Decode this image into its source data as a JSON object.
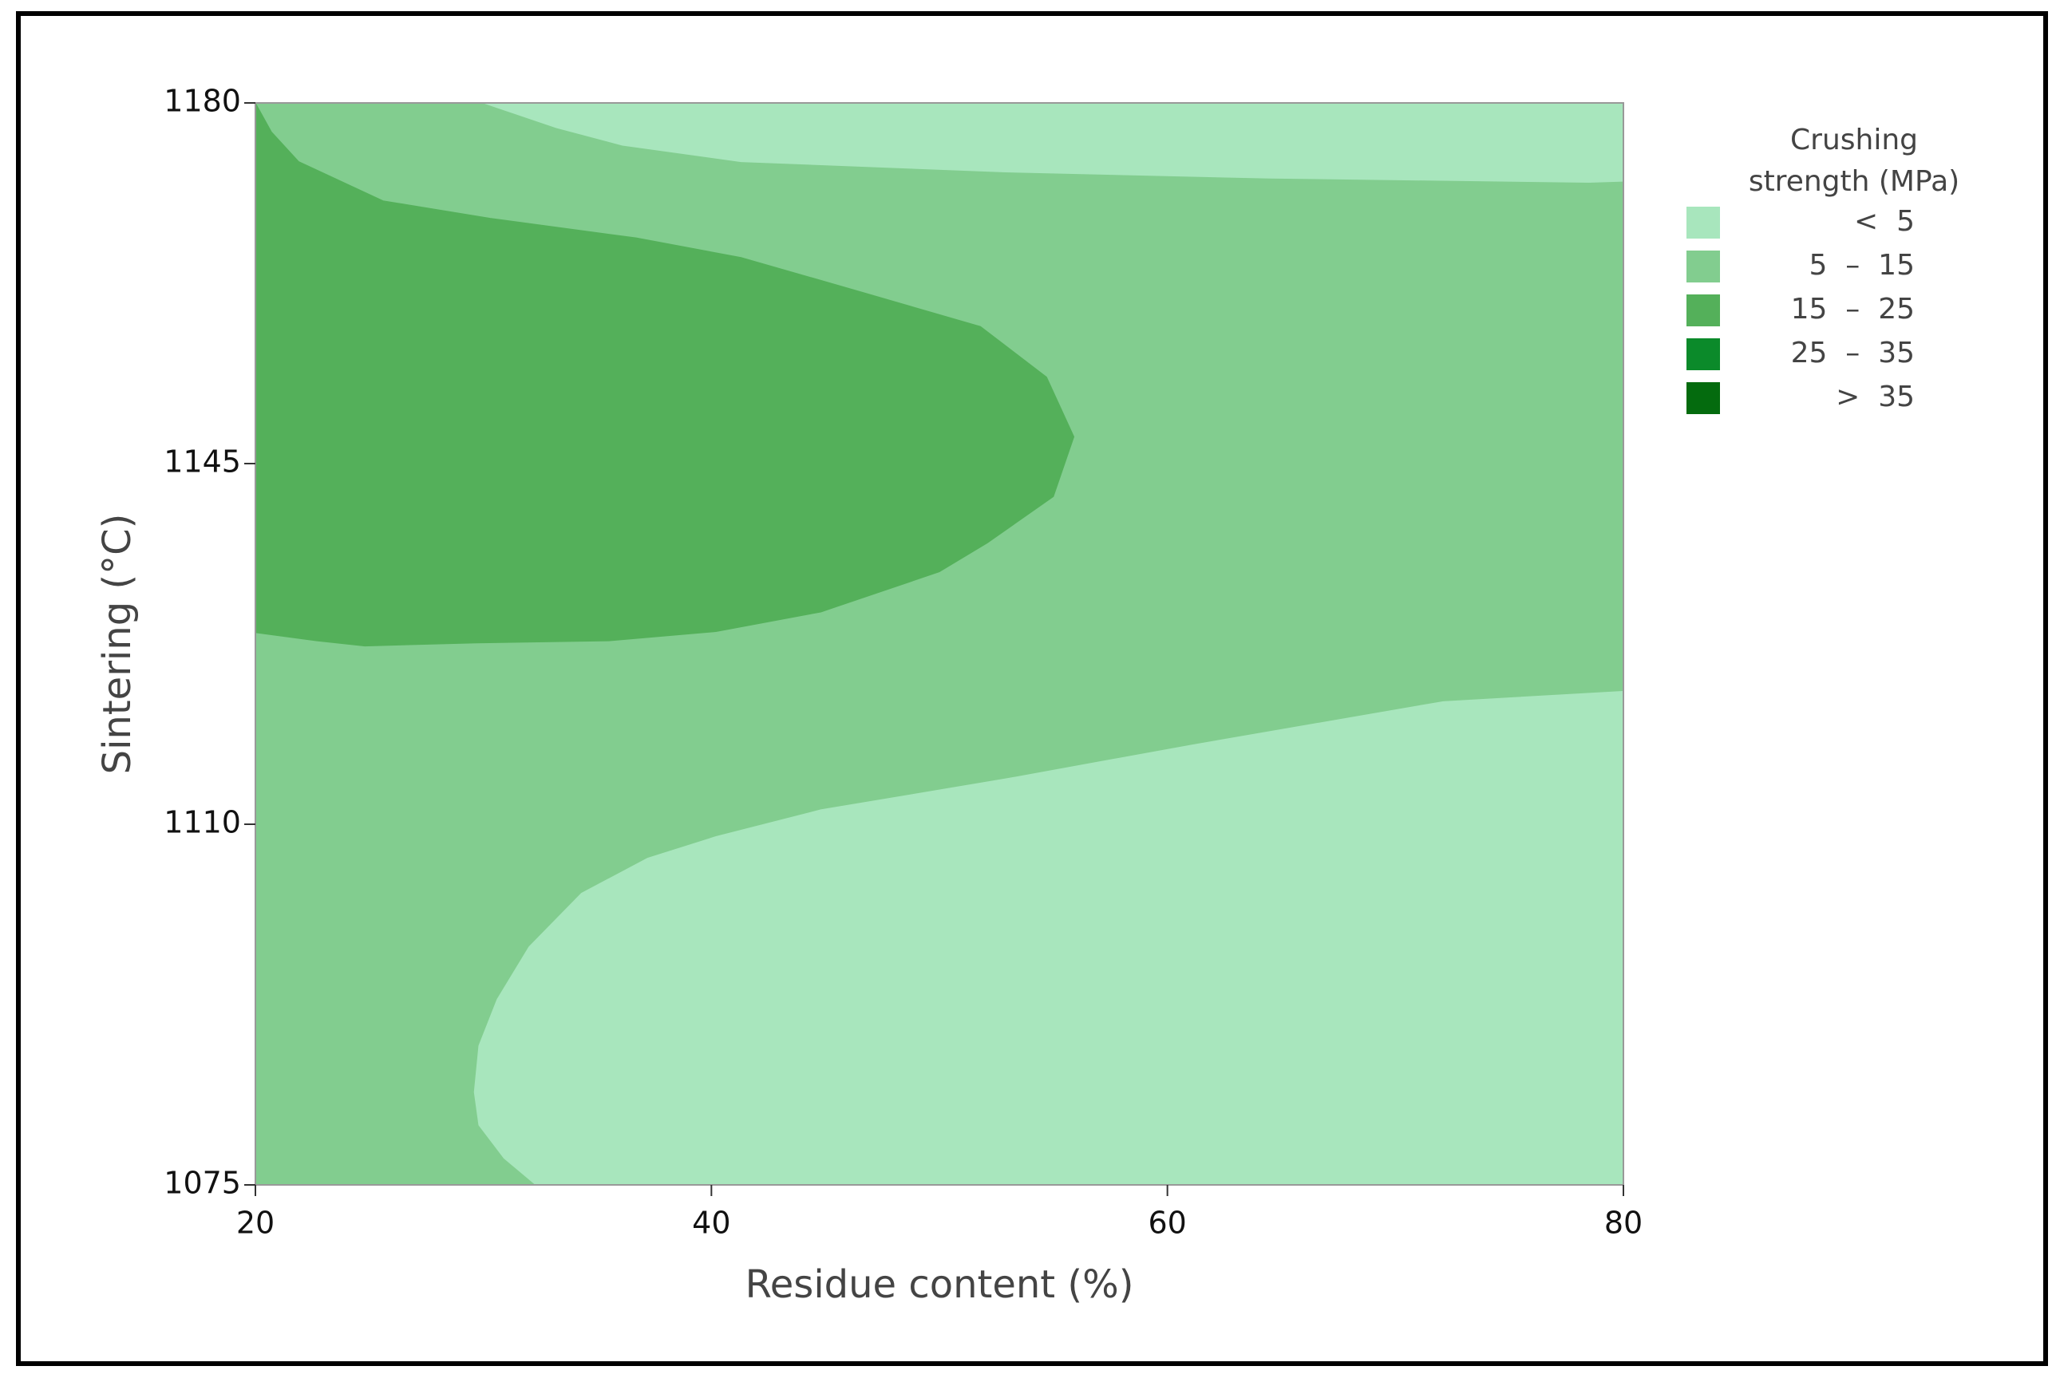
{
  "chart_data": {
    "type": "contour",
    "xlabel": "Residue content (%)",
    "ylabel": "Sintering (°C)",
    "legend_title": [
      "Crushing",
      "strength (MPa)"
    ],
    "xlim": [
      20,
      80
    ],
    "xticks": [
      20,
      40,
      60,
      80
    ],
    "ylim": [
      1075,
      1180
    ],
    "yticks": [
      1075,
      1110,
      1145,
      1180
    ],
    "series": [
      {
        "name": "<  5",
        "color": "#a8e6bd",
        "polygons": [
          {
            "x": [
              30,
              33.2,
              36.1,
              41.3,
              52.9,
              64.5,
              78.5,
              80,
              80
            ],
            "y": [
              1180,
              1177.6,
              1175.9,
              1174.3,
              1173.3,
              1172.7,
              1172.3,
              1172.4,
              1180
            ]
          },
          {
            "x": [
              32.3,
              30.9,
              29.8,
              29.6,
              29.8,
              30.6,
              32.0,
              34.3,
              37.2,
              40.2,
              44.8,
              52.9,
              61.1,
              72.1,
              80,
              80
            ],
            "y": [
              1075,
              1077.6,
              1080.8,
              1084.0,
              1088.5,
              1093.0,
              1098.1,
              1103.3,
              1106.7,
              1108.8,
              1111.4,
              1114.4,
              1117.7,
              1121.9,
              1122.9,
              1075
            ]
          }
        ]
      },
      {
        "name": "5  –  15",
        "color": "#82cd8f",
        "polygons": [
          {
            "x": [
              20,
              80,
              80,
              20
            ],
            "y": [
              1075,
              1075,
              1180,
              1180
            ]
          }
        ]
      },
      {
        "name": "15  –  25",
        "color": "#54b05a",
        "polygons": [
          {
            "x": [
              20,
              20.7,
              21.9,
              25.6,
              30.3,
              36.7,
              41.3,
              46.5,
              51.8,
              54.7,
              55.9,
              55.0,
              52.1,
              50.0,
              44.8,
              40.2,
              35.5,
              29.7,
              24.8,
              22.7,
              20
            ],
            "y": [
              1180,
              1177.2,
              1174.3,
              1170.5,
              1168.8,
              1166.9,
              1165.0,
              1161.7,
              1158.3,
              1153.4,
              1147.6,
              1141.8,
              1137.3,
              1134.5,
              1130.6,
              1128.7,
              1127.8,
              1127.6,
              1127.3,
              1127.8,
              1128.6
            ]
          }
        ]
      },
      {
        "name": "25  –  35",
        "color": "#0b8a2a",
        "polygons": []
      },
      {
        "name": ">  35",
        "color": "#046b0e",
        "polygons": []
      }
    ],
    "draw_order": [
      1,
      0,
      2,
      3,
      4
    ]
  }
}
